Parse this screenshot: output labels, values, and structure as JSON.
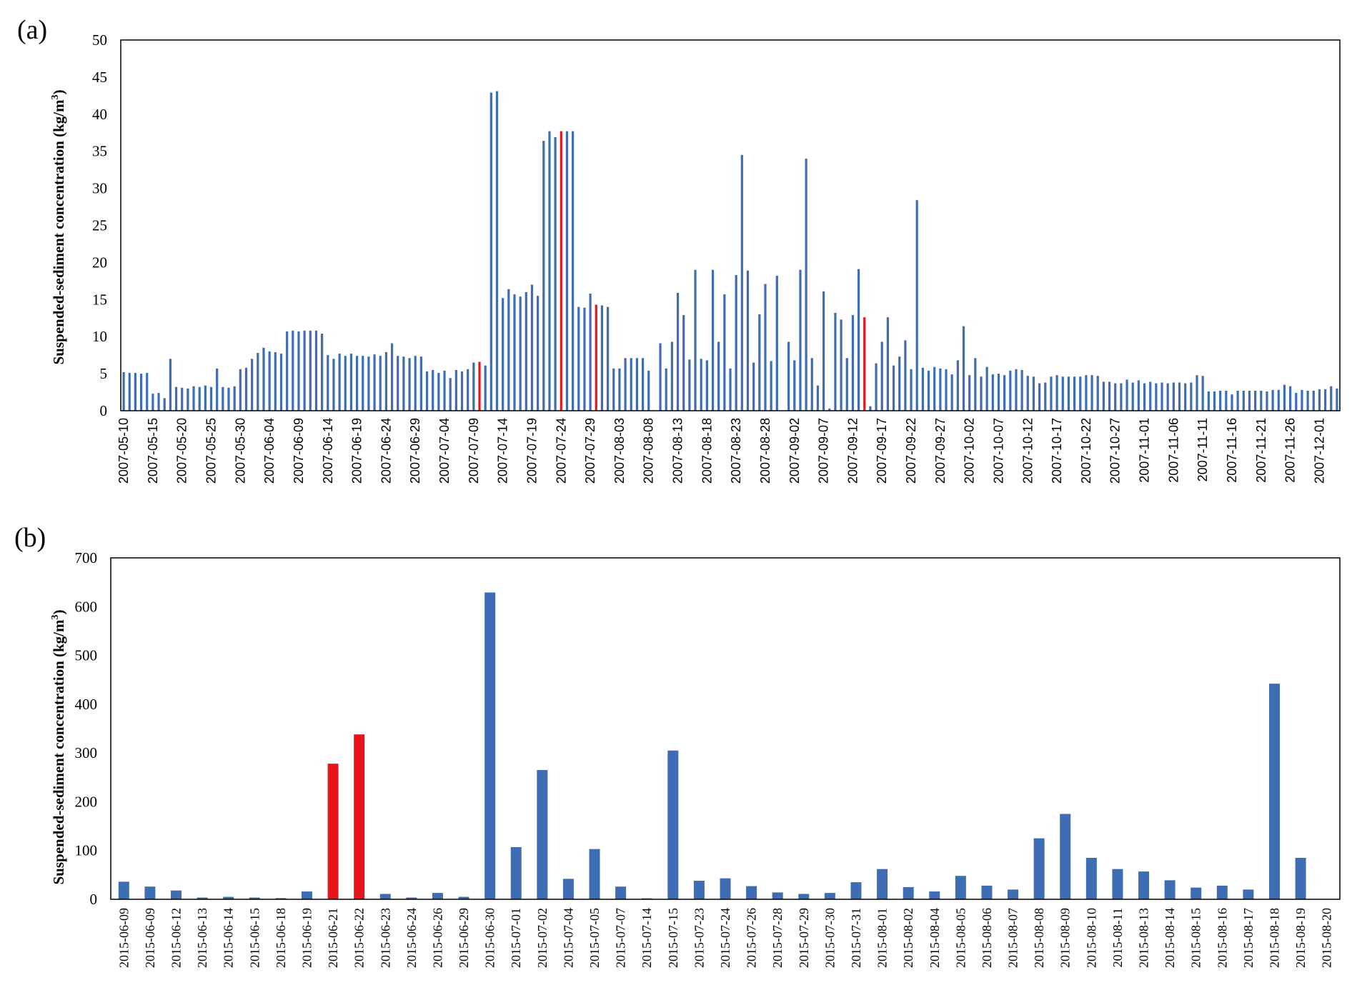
{
  "colors": {
    "bar": "#3e6db4",
    "highlight": "#e8141c",
    "axis": "#000000"
  },
  "chart_data": [
    {
      "panel_label": "(a)",
      "type": "bar",
      "ylabel": "Suspended-sediment  concentration (kg/m³)",
      "ylabel_main": "Suspended-sediment  concentration (kg/m",
      "ylabel_sup": "3",
      "ylabel_close": ")",
      "ylim": [
        0,
        50
      ],
      "yticks": [
        0,
        5,
        10,
        15,
        20,
        25,
        30,
        35,
        40,
        45,
        50
      ],
      "grid": false,
      "legend": "none",
      "x": [
        "2007-05-10",
        "2007-05-11",
        "2007-05-12",
        "2007-05-13",
        "2007-05-14",
        "2007-05-15",
        "2007-05-16",
        "2007-05-17",
        "2007-05-18",
        "2007-05-19",
        "2007-05-20",
        "2007-05-21",
        "2007-05-22",
        "2007-05-23",
        "2007-05-24",
        "2007-05-25",
        "2007-05-26",
        "2007-05-27",
        "2007-05-28",
        "2007-05-29",
        "2007-05-30",
        "2007-05-31",
        "2007-06-01",
        "2007-06-02",
        "2007-06-03",
        "2007-06-04",
        "2007-06-05",
        "2007-06-06",
        "2007-06-07",
        "2007-06-08",
        "2007-06-09",
        "2007-06-10",
        "2007-06-11",
        "2007-06-12",
        "2007-06-13",
        "2007-06-14",
        "2007-06-15",
        "2007-06-16",
        "2007-06-17",
        "2007-06-18",
        "2007-06-19",
        "2007-06-20",
        "2007-06-21",
        "2007-06-22",
        "2007-06-23",
        "2007-06-24",
        "2007-06-25",
        "2007-06-26",
        "2007-06-27",
        "2007-06-28",
        "2007-06-29",
        "2007-06-30",
        "2007-07-01",
        "2007-07-02",
        "2007-07-03",
        "2007-07-04",
        "2007-07-05",
        "2007-07-06",
        "2007-07-07",
        "2007-07-08",
        "2007-07-09",
        "2007-07-10",
        "2007-07-11",
        "2007-07-12",
        "2007-07-13",
        "2007-07-14",
        "2007-07-15",
        "2007-07-16",
        "2007-07-17",
        "2007-07-18",
        "2007-07-19",
        "2007-07-20",
        "2007-07-21",
        "2007-07-22",
        "2007-07-23",
        "2007-07-24",
        "2007-07-25",
        "2007-07-26",
        "2007-07-27",
        "2007-07-28",
        "2007-07-29",
        "2007-07-30",
        "2007-07-31",
        "2007-08-01",
        "2007-08-02",
        "2007-08-03",
        "2007-08-04",
        "2007-08-05",
        "2007-08-06",
        "2007-08-07",
        "2007-08-08",
        "2007-08-09",
        "2007-08-10",
        "2007-08-11",
        "2007-08-12",
        "2007-08-13",
        "2007-08-14",
        "2007-08-15",
        "2007-08-16",
        "2007-08-17",
        "2007-08-18",
        "2007-08-19",
        "2007-08-20",
        "2007-08-21",
        "2007-08-22",
        "2007-08-23",
        "2007-08-24",
        "2007-08-25",
        "2007-08-26",
        "2007-08-27",
        "2007-08-28",
        "2007-08-29",
        "2007-08-30",
        "2007-08-31",
        "2007-09-01",
        "2007-09-02",
        "2007-09-03",
        "2007-09-04",
        "2007-09-05",
        "2007-09-06",
        "2007-09-07",
        "2007-09-08",
        "2007-09-09",
        "2007-09-10",
        "2007-09-11",
        "2007-09-12",
        "2007-09-13",
        "2007-09-14",
        "2007-09-15",
        "2007-09-16",
        "2007-09-17",
        "2007-09-18",
        "2007-09-19",
        "2007-09-20",
        "2007-09-21",
        "2007-09-22",
        "2007-09-23",
        "2007-09-24",
        "2007-09-25",
        "2007-09-26",
        "2007-09-27",
        "2007-09-28",
        "2007-09-29",
        "2007-09-30",
        "2007-10-01",
        "2007-10-02",
        "2007-10-03",
        "2007-10-04",
        "2007-10-05",
        "2007-10-06",
        "2007-10-07",
        "2007-10-08",
        "2007-10-09",
        "2007-10-10",
        "2007-10-11",
        "2007-10-12",
        "2007-10-13",
        "2007-10-14",
        "2007-10-15",
        "2007-10-16",
        "2007-10-17",
        "2007-10-18",
        "2007-10-19",
        "2007-10-20",
        "2007-10-21",
        "2007-10-22",
        "2007-10-23",
        "2007-10-24",
        "2007-10-25",
        "2007-10-26",
        "2007-10-27",
        "2007-10-28",
        "2007-10-29",
        "2007-10-30",
        "2007-10-31",
        "2007-11-01",
        "2007-11-02",
        "2007-11-03",
        "2007-11-04",
        "2007-11-05",
        "2007-11-06",
        "2007-11-07",
        "2007-11-08",
        "2007-11-09",
        "2007-11-10",
        "2007-11-11",
        "2007-11-12",
        "2007-11-13",
        "2007-11-14",
        "2007-11-15",
        "2007-11-16",
        "2007-11-17",
        "2007-11-18",
        "2007-11-19",
        "2007-11-20",
        "2007-11-21",
        "2007-11-22",
        "2007-11-23",
        "2007-11-24",
        "2007-11-25",
        "2007-11-26",
        "2007-11-27",
        "2007-11-28",
        "2007-11-29",
        "2007-11-30",
        "2007-12-01",
        "2007-12-02",
        "2007-12-03",
        "2007-12-04"
      ],
      "values": [
        5.2,
        5.1,
        5.1,
        5.0,
        5.1,
        2.3,
        2.4,
        1.7,
        7.0,
        3.2,
        3.1,
        3.0,
        3.3,
        3.2,
        3.4,
        3.2,
        5.7,
        3.2,
        3.1,
        3.3,
        5.6,
        5.8,
        7.0,
        7.8,
        8.5,
        8.0,
        7.9,
        7.7,
        10.7,
        10.8,
        10.7,
        10.8,
        10.8,
        10.8,
        10.4,
        7.5,
        7.0,
        7.7,
        7.4,
        7.7,
        7.4,
        7.4,
        7.3,
        7.6,
        7.4,
        7.9,
        9.1,
        7.4,
        7.3,
        7.1,
        7.4,
        7.3,
        5.3,
        5.5,
        5.1,
        5.4,
        4.4,
        5.5,
        5.3,
        5.6,
        6.5,
        6.6,
        6.1,
        42.9,
        43.1,
        15.2,
        16.4,
        15.7,
        15.4,
        16.0,
        17.0,
        15.5,
        36.4,
        37.7,
        36.9,
        37.7,
        37.7,
        37.7,
        14.0,
        13.9,
        15.8,
        14.3,
        14.2,
        14.0,
        5.7,
        5.7,
        7.1,
        7.1,
        7.1,
        7.1,
        5.4,
        0,
        9.1,
        5.7,
        9.3,
        15.9,
        12.9,
        6.9,
        19.0,
        7.0,
        6.8,
        19.0,
        9.3,
        15.7,
        5.7,
        18.3,
        34.5,
        18.9,
        6.5,
        13.0,
        17.1,
        6.7,
        18.2,
        0,
        9.3,
        6.8,
        19.0,
        34.0,
        7.1,
        3.4,
        16.1,
        0.3,
        13.2,
        12.3,
        7.1,
        12.9,
        19.1,
        12.6,
        0.6,
        6.4,
        9.3,
        12.6,
        6.1,
        7.3,
        9.5,
        5.6,
        28.4,
        5.8,
        5.4,
        5.9,
        5.7,
        5.6,
        4.9,
        6.8,
        11.4,
        4.8,
        7.1,
        4.6,
        5.9,
        4.9,
        5.0,
        4.8,
        5.4,
        5.6,
        5.5,
        4.7,
        4.6,
        3.7,
        3.8,
        4.6,
        4.8,
        4.6,
        4.6,
        4.6,
        4.6,
        4.8,
        4.8,
        4.7,
        3.9,
        3.9,
        3.7,
        3.7,
        4.2,
        3.8,
        4.1,
        3.7,
        3.9,
        3.7,
        3.8,
        3.7,
        3.8,
        3.8,
        3.7,
        3.8,
        4.8,
        4.7,
        2.6,
        2.6,
        2.7,
        2.7,
        2.2,
        2.7,
        2.7,
        2.7,
        2.7,
        2.7,
        2.6,
        2.8,
        2.8,
        3.5,
        3.3,
        2.4,
        2.8,
        2.7,
        2.7,
        2.9,
        2.9,
        3.3,
        3.0
      ],
      "highlighted": [
        "2007-07-10",
        "2007-07-24",
        "2007-07-30",
        "2007-09-14"
      ],
      "xtick_labels": [
        "2007-05-10",
        "2007-05-15",
        "2007-05-20",
        "2007-05-25",
        "2007-05-30",
        "2007-06-04",
        "2007-06-09",
        "2007-06-14",
        "2007-06-19",
        "2007-06-24",
        "2007-06-29",
        "2007-07-04",
        "2007-07-09",
        "2007-07-14",
        "2007-07-19",
        "2007-07-24",
        "2007-07-29",
        "2007-08-03",
        "2007-08-08",
        "2007-08-13",
        "2007-08-18",
        "2007-08-23",
        "2007-08-28",
        "2007-09-02",
        "2007-09-07",
        "2007-09-12",
        "2007-09-17",
        "2007-09-22",
        "2007-09-27",
        "2007-10-02",
        "2007-10-07",
        "2007-10-12",
        "2007-10-17",
        "2007-10-22",
        "2007-10-27",
        "2007-11-01",
        "2007-11-06",
        "2007-11-11",
        "2007-11-16",
        "2007-11-21",
        "2007-11-26",
        "2007-12-01"
      ]
    },
    {
      "panel_label": "(b)",
      "type": "bar",
      "ylabel": "Suspended-sediment  concentration (kg/m³)",
      "ylabel_main": "Suspended-sediment  concentration (kg/m",
      "ylabel_sup": "3",
      "ylabel_close": ")",
      "ylim": [
        0,
        700
      ],
      "yticks": [
        0,
        100,
        200,
        300,
        400,
        500,
        600,
        700
      ],
      "grid": false,
      "legend": "none",
      "categories": [
        "2015-06-09",
        "2015-06-09",
        "2015-06-12",
        "2015-06-13",
        "2015-06-14",
        "2015-06-15",
        "2015-06-18",
        "2015-06-19",
        "2015-06-21",
        "2015-06-22",
        "2015-06-23",
        "2015-06-24",
        "2015-06-26",
        "2015-06-29",
        "2015-06-30",
        "2015-07-01",
        "2015-07-02",
        "2015-07-04",
        "2015-07-05",
        "2015-07-07",
        "2015-07-14",
        "2015-07-15",
        "2015-07-23",
        "2015-07-24",
        "2015-07-26",
        "2015-07-28",
        "2015-07-29",
        "2015-07-30",
        "2015-07-31",
        "2015-08-01",
        "2015-08-02",
        "2015-08-04",
        "2015-08-05",
        "2015-08-06",
        "2015-08-07",
        "2015-08-08",
        "2015-08-09",
        "2015-08-10",
        "2015-08-11",
        "2015-08-13",
        "2015-08-14",
        "2015-08-15",
        "2015-08-16",
        "2015-08-17",
        "2015-08-18",
        "2015-08-19",
        "2015-08-20"
      ],
      "values": [
        36,
        26,
        18,
        3.6,
        5,
        3.6,
        2.4,
        16,
        278,
        338,
        11,
        3.6,
        13,
        5,
        629,
        107,
        265,
        42,
        103,
        26,
        2,
        305,
        38,
        43,
        27,
        14,
        11,
        13,
        35,
        62,
        25,
        16,
        48,
        28,
        20,
        125,
        175,
        85,
        62,
        57,
        39,
        24,
        28,
        20,
        442,
        85,
        0
      ],
      "highlighted_index": [
        8,
        9
      ]
    }
  ]
}
